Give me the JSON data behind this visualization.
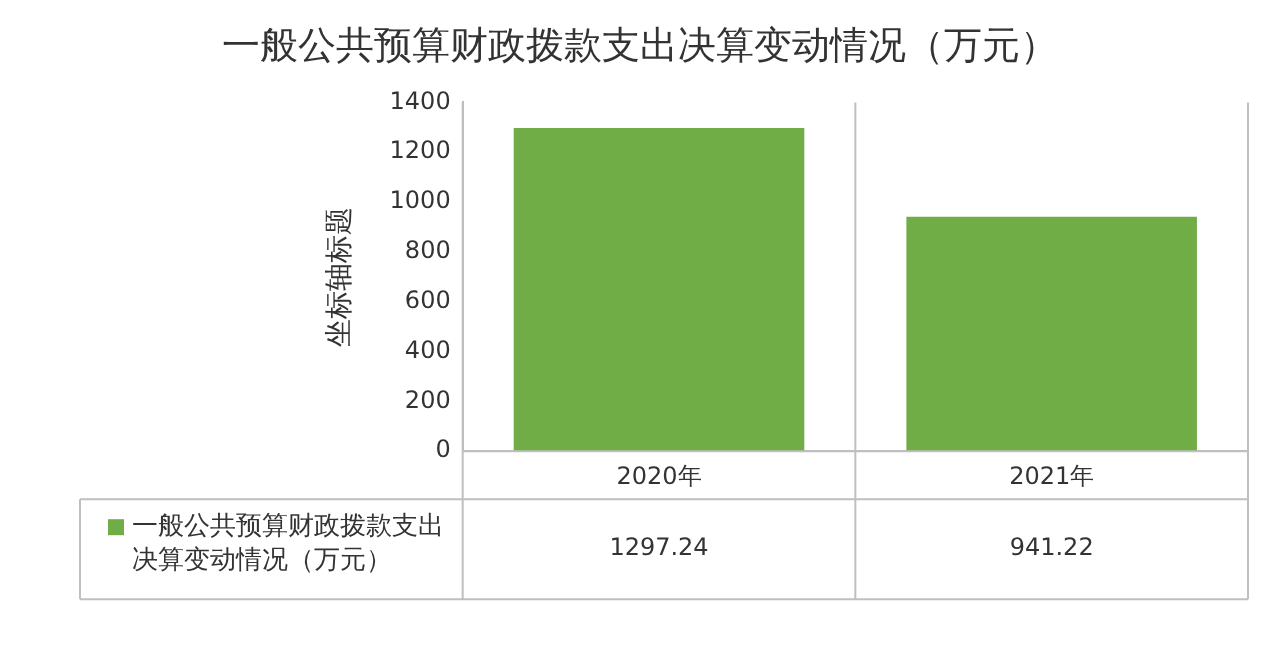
{
  "chart_data": {
    "type": "bar",
    "title": "一般公共预算财政拨款支出决算变动情况（万元）",
    "ylabel": "坐标轴标题",
    "categories": [
      "2020年",
      "2021年"
    ],
    "series": [
      {
        "name": "一般公共预算财政拨款支出决算变动情况（万元）",
        "color": "#70ad47",
        "values": [
          1297.24,
          941.22
        ]
      }
    ],
    "ylim": [
      0,
      1400
    ],
    "yticks": [
      0,
      200,
      400,
      600,
      800,
      1000,
      1200,
      1400
    ],
    "data_labels": true,
    "grid": false,
    "legend": "bottom left"
  }
}
